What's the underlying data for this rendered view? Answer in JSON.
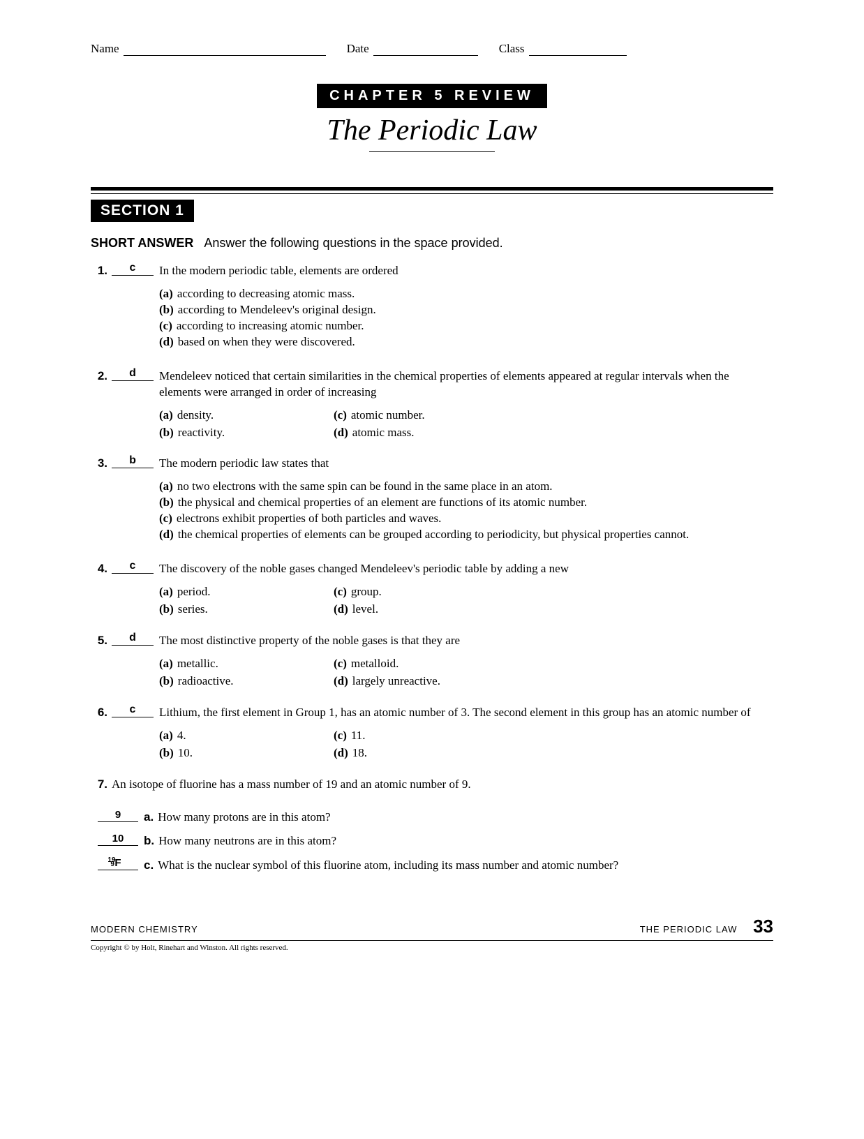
{
  "header": {
    "name_label": "Name",
    "date_label": "Date",
    "class_label": "Class"
  },
  "chapter_banner": "CHAPTER 5 REVIEW",
  "main_title": "The Periodic Law",
  "section_banner": "SECTION 1",
  "instructions_heading": "SHORT ANSWER",
  "instructions_text": "Answer the following questions in the space provided.",
  "questions": [
    {
      "num": "1.",
      "answer": "c",
      "stem": "In the modern periodic table, elements are ordered",
      "options_layout": "list",
      "options": [
        {
          "l": "(a)",
          "t": "according to decreasing atomic mass."
        },
        {
          "l": "(b)",
          "t": "according to Mendeleev's original design."
        },
        {
          "l": "(c)",
          "t": "according to increasing atomic number."
        },
        {
          "l": "(d)",
          "t": "based on when they were discovered."
        }
      ]
    },
    {
      "num": "2.",
      "answer": "d",
      "stem": "Mendeleev noticed that certain similarities in the chemical properties of elements appeared at regular intervals when the elements were arranged in order of increasing",
      "options_layout": "grid",
      "options": [
        {
          "l": "(a)",
          "t": "density."
        },
        {
          "l": "(c)",
          "t": "atomic number."
        },
        {
          "l": "(b)",
          "t": "reactivity."
        },
        {
          "l": "(d)",
          "t": "atomic mass."
        }
      ]
    },
    {
      "num": "3.",
      "answer": "b",
      "stem": "The modern periodic law states that",
      "options_layout": "list",
      "options": [
        {
          "l": "(a)",
          "t": "no two electrons with the same spin can be found in the same place in an atom."
        },
        {
          "l": "(b)",
          "t": "the physical and chemical properties of an element are functions of its atomic number."
        },
        {
          "l": "(c)",
          "t": "electrons exhibit properties of both particles and waves."
        },
        {
          "l": "(d)",
          "t": "the chemical properties of elements can be grouped according to periodicity, but physical properties cannot."
        }
      ]
    },
    {
      "num": "4.",
      "answer": "c",
      "stem": "The discovery of the noble gases changed Mendeleev's periodic table by adding a new",
      "options_layout": "grid",
      "options": [
        {
          "l": "(a)",
          "t": "period."
        },
        {
          "l": "(c)",
          "t": "group."
        },
        {
          "l": "(b)",
          "t": "series."
        },
        {
          "l": "(d)",
          "t": "level."
        }
      ]
    },
    {
      "num": "5.",
      "answer": "d",
      "stem": "The most distinctive property of the noble gases is that they are",
      "options_layout": "grid",
      "options": [
        {
          "l": "(a)",
          "t": "metallic."
        },
        {
          "l": "(c)",
          "t": "metalloid."
        },
        {
          "l": "(b)",
          "t": "radioactive."
        },
        {
          "l": "(d)",
          "t": "largely unreactive."
        }
      ]
    },
    {
      "num": "6.",
      "answer": "c",
      "stem": "Lithium, the first element in Group 1, has an atomic number of 3. The second element in this group has an atomic number of",
      "options_layout": "grid",
      "options": [
        {
          "l": "(a)",
          "t": "4."
        },
        {
          "l": "(c)",
          "t": "11."
        },
        {
          "l": "(b)",
          "t": "10."
        },
        {
          "l": "(d)",
          "t": "18."
        }
      ]
    }
  ],
  "q7": {
    "num": "7.",
    "stem": "An isotope of fluorine has a mass number of 19 and an atomic number of 9.",
    "subs": [
      {
        "answer": "9",
        "letter": "a.",
        "text": "How many protons are in this atom?"
      },
      {
        "answer": "10",
        "letter": "b.",
        "text": "How many neutrons are in this atom?"
      },
      {
        "answer_nuclear": {
          "mass": "19",
          "atomic": "9",
          "el": "F"
        },
        "letter": "c.",
        "text": "What is the nuclear symbol of this fluorine atom, including its mass number and atomic number?"
      }
    ]
  },
  "footer": {
    "left": "MODERN CHEMISTRY",
    "right": "THE PERIODIC LAW",
    "page": "33",
    "copyright": "Copyright © by Holt, Rinehart and Winston. All rights reserved."
  }
}
